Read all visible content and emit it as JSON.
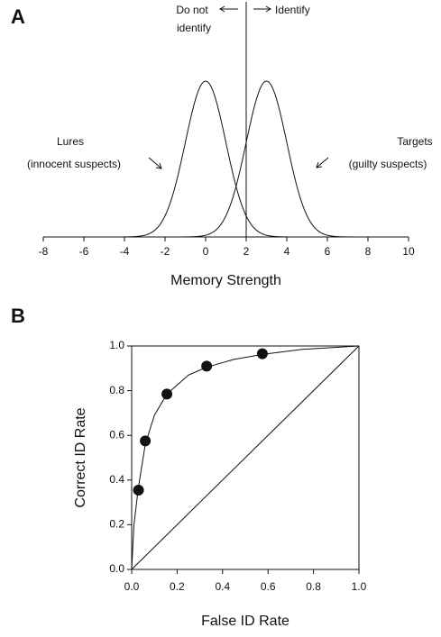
{
  "chart_data": [
    {
      "type": "density",
      "panel": "A",
      "xlabel": "Memory Strength",
      "xlim": [
        -8,
        10
      ],
      "xticks": [
        -8,
        -6,
        -4,
        -2,
        0,
        2,
        4,
        6,
        8,
        10
      ],
      "distributions": [
        {
          "mean": 0,
          "sd": 1,
          "xrange": [
            -6,
            6
          ]
        },
        {
          "mean": 3,
          "sd": 1,
          "xrange": [
            -3,
            9
          ]
        }
      ],
      "criterion": 2,
      "annotations": {
        "do_not": "Do not",
        "do_not_2": "identify",
        "identify": "Identify",
        "lures": "Lures",
        "lures_2": "(innocent suspects)",
        "targets": "Targets",
        "targets_2": "(guilty suspects)"
      }
    },
    {
      "type": "scatter",
      "panel": "B",
      "xlabel": "False ID Rate",
      "ylabel": "Correct ID Rate",
      "xlim": [
        0,
        1
      ],
      "ylim": [
        0,
        1
      ],
      "xticks": [
        {
          "value": 0,
          "label": "0.0"
        },
        0.2,
        0.4,
        0.6,
        0.8,
        {
          "value": 1,
          "label": "1.0"
        }
      ],
      "yticks": [
        {
          "value": 0,
          "label": "0.0"
        },
        0.2,
        0.4,
        0.6,
        0.8,
        {
          "value": 1,
          "label": "1.0"
        }
      ],
      "x": [
        0.03,
        0.06,
        0.155,
        0.33,
        0.575
      ],
      "y": [
        0.355,
        0.575,
        0.785,
        0.91,
        0.965
      ],
      "curve": {
        "x": [
          0,
          0.01,
          0.03,
          0.06,
          0.1,
          0.155,
          0.25,
          0.33,
          0.45,
          0.575,
          0.75,
          1
        ],
        "y": [
          0,
          0.2,
          0.37,
          0.56,
          0.69,
          0.785,
          0.87,
          0.905,
          0.94,
          0.962,
          0.985,
          1
        ]
      }
    }
  ]
}
